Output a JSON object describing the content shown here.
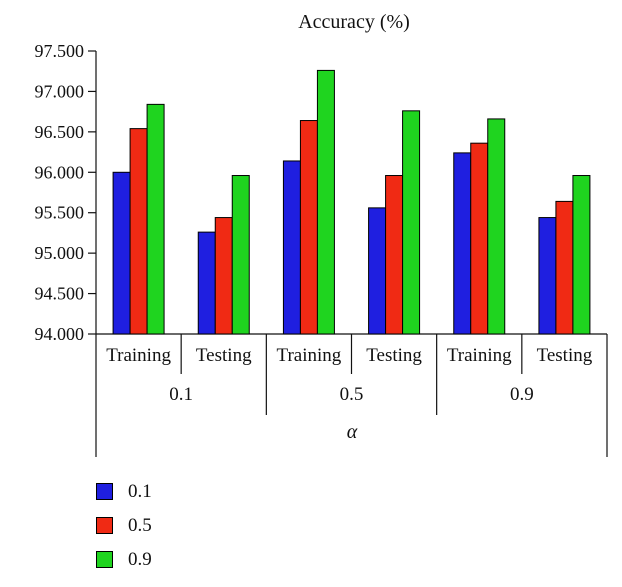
{
  "chart_data": {
    "type": "bar",
    "title": "Accuracy (%)",
    "xlabel": "α",
    "ylim": [
      94.0,
      97.5
    ],
    "yticks": [
      "94.000",
      "94.500",
      "95.000",
      "95.500",
      "96.000",
      "96.500",
      "97.000",
      "97.500"
    ],
    "groups": [
      {
        "label": "0.1",
        "subgroups": [
          "Training",
          "Testing"
        ]
      },
      {
        "label": "0.5",
        "subgroups": [
          "Training",
          "Testing"
        ]
      },
      {
        "label": "0.9",
        "subgroups": [
          "Training",
          "Testing"
        ]
      }
    ],
    "categories": [
      "0.1 Training",
      "0.1 Testing",
      "0.5 Training",
      "0.5 Testing",
      "0.9 Training",
      "0.9 Testing"
    ],
    "series": [
      {
        "name": "0.1",
        "color": "#1f1fe0",
        "values": [
          96.0,
          95.26,
          96.14,
          95.56,
          96.24,
          95.44
        ]
      },
      {
        "name": "0.5",
        "color": "#f02a14",
        "values": [
          96.54,
          95.44,
          96.64,
          95.96,
          96.36,
          95.64
        ]
      },
      {
        "name": "0.9",
        "color": "#1fd41f",
        "values": [
          96.84,
          95.96,
          97.26,
          96.76,
          96.66,
          95.96
        ]
      }
    ],
    "legend_position": "bottom-left",
    "grid": false
  }
}
